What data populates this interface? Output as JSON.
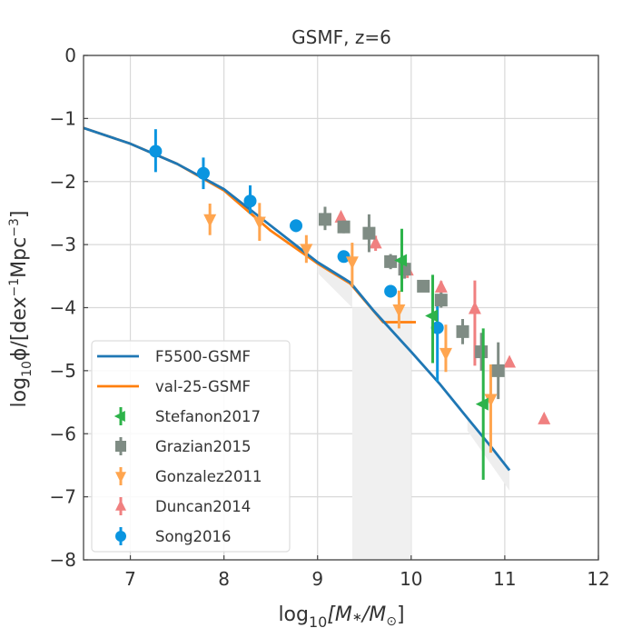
{
  "chart_data": {
    "type": "scatter",
    "title": "GSMF, z=6",
    "xlabel_parts": {
      "pre": "log",
      "sub": "10",
      "post": "[M",
      "star": "∗",
      "mid": "/M",
      "sun": "⊙",
      "end": "]"
    },
    "ylabel_parts": {
      "pre": "log",
      "sub": "10",
      "post": "ϕ/[dex",
      "sup1": "−1",
      "mid": "Mpc",
      "sup2": "−3",
      "end": "]"
    },
    "xlim": [
      6.5,
      12
    ],
    "ylim": [
      -8,
      0
    ],
    "xticks": [
      7,
      8,
      9,
      10,
      11,
      12
    ],
    "yticks": [
      0,
      -1,
      -2,
      -3,
      -4,
      -5,
      -6,
      -7,
      -8
    ],
    "xtick_labels": [
      "7",
      "8",
      "9",
      "10",
      "11",
      "12"
    ],
    "ytick_labels": [
      "0",
      "−1",
      "−2",
      "−3",
      "−4",
      "−5",
      "−6",
      "−7",
      "−8"
    ],
    "grid": true,
    "legend_position": "lower-left",
    "shaded_band": {
      "x_from": 9.37,
      "x_to": 10.0,
      "color": "#f0f0f0"
    },
    "lines": [
      {
        "name": "F5500-GSMF",
        "color": "#1f77b4",
        "x": [
          6.5,
          7.0,
          7.5,
          8.0,
          8.5,
          9.0,
          9.35,
          9.6,
          10.0,
          10.3,
          10.6,
          10.85,
          11.05
        ],
        "y": [
          -1.15,
          -1.4,
          -1.72,
          -2.12,
          -2.7,
          -3.28,
          -3.6,
          -4.05,
          -4.7,
          -5.2,
          -5.75,
          -6.2,
          -6.58
        ]
      },
      {
        "name": "val-25-GSMF",
        "color": "#ff7f0e",
        "x": [
          6.5,
          7.0,
          7.5,
          8.0,
          8.5,
          9.0,
          9.35,
          9.7,
          10.05
        ],
        "y": [
          -1.15,
          -1.4,
          -1.72,
          -2.14,
          -2.78,
          -3.3,
          -3.62,
          -4.23,
          -4.23
        ]
      }
    ],
    "series": [
      {
        "name": "Stefanon2017",
        "color": "#2db34a",
        "marker": "triangle-left",
        "points": [
          {
            "x": 9.9,
            "y": -3.25,
            "err_lo": 0.5,
            "err_hi": 0.5
          },
          {
            "x": 10.23,
            "y": -4.13,
            "err_lo": 0.75,
            "err_hi": 0.65
          },
          {
            "x": 10.77,
            "y": -5.53,
            "err_lo": 1.2,
            "err_hi": 1.2
          }
        ]
      },
      {
        "name": "Grazian2015",
        "color": "#7f8c84",
        "marker": "square",
        "points": [
          {
            "x": 9.08,
            "y": -2.6,
            "err_lo": 0.17,
            "err_hi": 0.2
          },
          {
            "x": 9.28,
            "y": -2.72,
            "err_lo": 0.1,
            "err_hi": 0.1
          },
          {
            "x": 9.55,
            "y": -2.82,
            "err_lo": 0.3,
            "err_hi": 0.3
          },
          {
            "x": 9.78,
            "y": -3.27,
            "err_lo": 0.12,
            "err_hi": 0.12
          },
          {
            "x": 9.93,
            "y": -3.39,
            "err_lo": 0.15,
            "err_hi": 0.15
          },
          {
            "x": 10.13,
            "y": -3.66,
            "err_lo": 0.08,
            "err_hi": 0.08
          },
          {
            "x": 10.32,
            "y": -3.88,
            "err_lo": 0.12,
            "err_hi": 0.12
          },
          {
            "x": 10.55,
            "y": -4.38,
            "err_lo": 0.2,
            "err_hi": 0.2
          },
          {
            "x": 10.75,
            "y": -4.7,
            "err_lo": 0.3,
            "err_hi": 0.3
          },
          {
            "x": 10.93,
            "y": -5.0,
            "err_lo": 0.45,
            "err_hi": 0.45
          }
        ]
      },
      {
        "name": "Gonzalez2011",
        "color": "#ffa54f",
        "marker": "triangle-down",
        "points": [
          {
            "x": 7.85,
            "y": -2.6,
            "err_lo": 0.25,
            "err_hi": 0.25
          },
          {
            "x": 8.38,
            "y": -2.64,
            "err_lo": 0.3,
            "err_hi": 0.3
          },
          {
            "x": 8.88,
            "y": -3.07,
            "err_lo": 0.22,
            "err_hi": 0.22
          },
          {
            "x": 9.37,
            "y": -3.27,
            "err_lo": 0.4,
            "err_hi": 0.3
          },
          {
            "x": 9.87,
            "y": -4.03,
            "err_lo": 0.3,
            "err_hi": 0.3
          },
          {
            "x": 10.37,
            "y": -4.72,
            "err_lo": 0.3,
            "err_hi": 0.45
          },
          {
            "x": 10.85,
            "y": -5.45,
            "err_lo": 0.85,
            "err_hi": 0.55
          }
        ]
      },
      {
        "name": "Duncan2014",
        "color": "#f08080",
        "marker": "triangle-up",
        "points": [
          {
            "x": 9.25,
            "y": -2.57,
            "err_lo": 0.08,
            "err_hi": 0.08
          },
          {
            "x": 9.62,
            "y": -2.98,
            "err_lo": 0.12,
            "err_hi": 0.12
          },
          {
            "x": 9.96,
            "y": -3.41,
            "err_lo": 0.12,
            "err_hi": 0.12
          },
          {
            "x": 10.32,
            "y": -3.68,
            "err_lo": 0.1,
            "err_hi": 0.1
          },
          {
            "x": 10.68,
            "y": -4.02,
            "err_lo": 0.9,
            "err_hi": 0.45
          },
          {
            "x": 11.05,
            "y": -4.87,
            "err_lo": 0.0,
            "err_hi": 0.0
          },
          {
            "x": 11.42,
            "y": -5.77,
            "err_lo": 0.0,
            "err_hi": 0.0
          }
        ]
      },
      {
        "name": "Song2016",
        "color": "#0a95e0",
        "marker": "circle",
        "points": [
          {
            "x": 7.27,
            "y": -1.52,
            "err_lo": 0.33,
            "err_hi": 0.35
          },
          {
            "x": 7.78,
            "y": -1.87,
            "err_lo": 0.25,
            "err_hi": 0.25
          },
          {
            "x": 8.28,
            "y": -2.31,
            "err_lo": 0.2,
            "err_hi": 0.25
          },
          {
            "x": 8.77,
            "y": -2.7,
            "err_lo": 0.1,
            "err_hi": 0.1
          },
          {
            "x": 9.28,
            "y": -3.19,
            "err_lo": 0.07,
            "err_hi": 0.07
          },
          {
            "x": 9.78,
            "y": -3.74,
            "err_lo": 0.1,
            "err_hi": 0.1
          },
          {
            "x": 10.28,
            "y": -4.32,
            "err_lo": 0.85,
            "err_hi": 0.4
          }
        ]
      }
    ],
    "legend_order": [
      "F5500-GSMF",
      "val-25-GSMF",
      "Stefanon2017",
      "Grazian2015",
      "Gonzalez2011",
      "Duncan2014",
      "Song2016"
    ]
  }
}
